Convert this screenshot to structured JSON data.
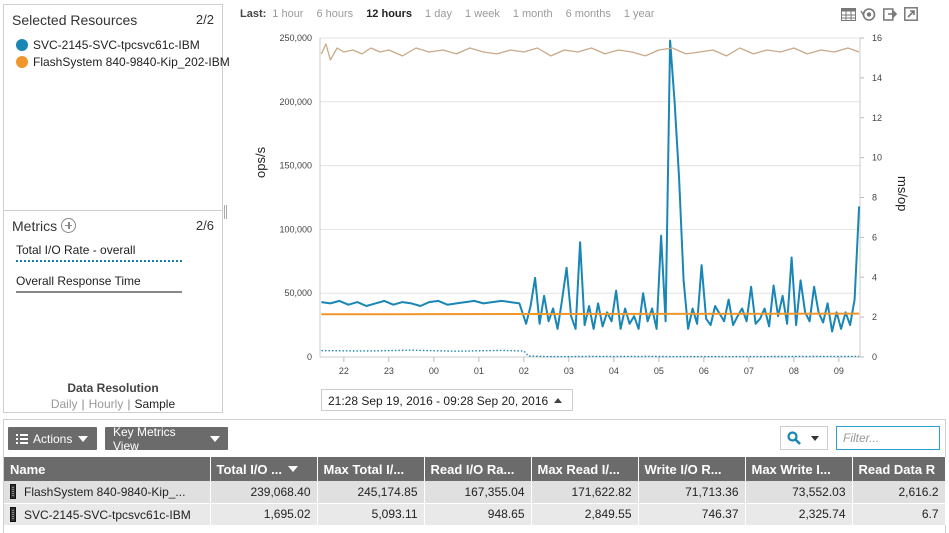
{
  "selected_resources": {
    "title": "Selected Resources",
    "count": "2/2",
    "items": [
      {
        "label": "SVC-2145-SVC-tpcsvc61c-IBM",
        "color": "#1a86b5"
      },
      {
        "label": "FlashSystem 840-9840-Kip_202-IBM",
        "color": "#f0962a"
      }
    ]
  },
  "metrics": {
    "title": "Metrics",
    "count": "2/6",
    "items": [
      {
        "label": "Total I/O Rate - overall"
      },
      {
        "label": "Overall Response Time"
      }
    ],
    "resolution_title": "Data Resolution",
    "resolution_options": [
      "Daily",
      "Hourly",
      "Sample"
    ],
    "resolution_selected": "Sample",
    "separator": "|"
  },
  "time_range": {
    "label": "Last:",
    "options": [
      "1 hour",
      "6 hours",
      "12 hours",
      "1 day",
      "1 week",
      "1 month",
      "6 months",
      "1 year"
    ],
    "selected": "12 hours"
  },
  "toolbar_icons": [
    "table-view-icon",
    "refresh-icon",
    "export-icon",
    "open-window-icon"
  ],
  "chart_data": {
    "type": "line",
    "ylabel_left": "ops/s",
    "ylabel_right": "ms/op",
    "y_left_ticks": [
      "0",
      "50,000",
      "100,000",
      "150,000",
      "200,000",
      "250,000"
    ],
    "y_left_range": [
      0,
      250000
    ],
    "y_right_ticks": [
      "0",
      "2",
      "4",
      "6",
      "8",
      "10",
      "12",
      "14",
      "16"
    ],
    "y_right_range": [
      0,
      16
    ],
    "x_tick_labels": [
      "22",
      "23",
      "00",
      "01",
      "02",
      "03",
      "04",
      "05",
      "06",
      "07",
      "08",
      "09"
    ],
    "x_tick_hours": [
      22,
      23,
      24,
      25,
      26,
      27,
      28,
      29,
      30,
      31,
      32,
      33
    ],
    "x_range_hours": [
      21.47,
      33.47
    ],
    "grid": true,
    "series": [
      {
        "name": "SVC-2145-SVC-tpcsvc61c-IBM",
        "metric": "Total I/O Rate - overall",
        "axis": "left",
        "style": "solid",
        "color": "#1a86b5",
        "x": [
          21.5,
          21.7,
          21.9,
          22.1,
          22.3,
          22.5,
          22.7,
          22.9,
          23.1,
          23.3,
          23.5,
          23.7,
          23.9,
          24.1,
          24.3,
          24.5,
          24.7,
          24.9,
          25.1,
          25.3,
          25.5,
          25.7,
          25.9,
          26.05,
          26.15,
          26.25,
          26.35,
          26.45,
          26.55,
          26.65,
          26.75,
          26.85,
          26.95,
          27.05,
          27.15,
          27.25,
          27.35,
          27.45,
          27.55,
          27.65,
          27.75,
          27.85,
          27.95,
          28.05,
          28.15,
          28.25,
          28.35,
          28.45,
          28.55,
          28.65,
          28.75,
          28.85,
          28.95,
          29.05,
          29.15,
          29.25,
          29.35,
          29.45,
          29.55,
          29.65,
          29.75,
          29.85,
          29.95,
          30.05,
          30.15,
          30.25,
          30.35,
          30.45,
          30.55,
          30.65,
          30.75,
          30.85,
          30.95,
          31.05,
          31.15,
          31.25,
          31.35,
          31.45,
          31.55,
          31.65,
          31.75,
          31.85,
          31.95,
          32.05,
          32.15,
          32.25,
          32.35,
          32.45,
          32.55,
          32.65,
          32.75,
          32.85,
          32.95,
          33.05,
          33.15,
          33.25,
          33.35,
          33.45
        ],
        "y": [
          43000,
          42000,
          44000,
          41000,
          43000,
          40000,
          42000,
          44000,
          41000,
          43000,
          42000,
          40000,
          43000,
          44000,
          41000,
          42000,
          43000,
          44000,
          42000,
          43000,
          44000,
          43000,
          42000,
          26000,
          40000,
          62000,
          26000,
          48000,
          28000,
          38000,
          22000,
          45000,
          70000,
          32000,
          22000,
          90000,
          25000,
          40000,
          22000,
          42000,
          24000,
          35000,
          28000,
          52000,
          22000,
          38000,
          26000,
          32000,
          22000,
          50000,
          28000,
          38000,
          22000,
          95000,
          28000,
          248000,
          200000,
          140000,
          60000,
          22000,
          38000,
          26000,
          72000,
          30000,
          25000,
          40000,
          34000,
          28000,
          45000,
          25000,
          32000,
          38000,
          28000,
          55000,
          26000,
          30000,
          38000,
          24000,
          56000,
          32000,
          48000,
          26000,
          78000,
          25000,
          60000,
          35000,
          28000,
          55000,
          35000,
          27000,
          42000,
          20000,
          35000,
          22000,
          35000,
          25000,
          45000,
          118000
        ]
      },
      {
        "name": "FlashSystem 840-9840-Kip_202-IBM",
        "metric": "Total I/O Rate - overall",
        "axis": "left",
        "style": "solid",
        "color": "#f0962a",
        "x": [
          21.5,
          33.45
        ],
        "y": [
          33500,
          34000
        ]
      },
      {
        "name": "SVC-2145-SVC-tpcsvc61c-IBM",
        "metric": "Overall Response Time",
        "axis": "right",
        "style": "dotted",
        "color": "#1a86b5",
        "x": [
          21.5,
          22.5,
          23.5,
          24.5,
          25.5,
          26.0,
          26.1,
          26.5,
          28.0,
          30.0,
          33.45
        ],
        "y": [
          0.32,
          0.3,
          0.34,
          0.29,
          0.33,
          0.3,
          0.05,
          0.02,
          0.03,
          0.02,
          0.03
        ]
      },
      {
        "name": "FlashSystem 840-9840-Kip_202-IBM",
        "metric": "Overall Response Time",
        "axis": "right",
        "style": "solid",
        "color": "#c9a98a",
        "x": [
          21.5,
          21.6,
          21.7,
          21.85,
          22.0,
          22.2,
          22.4,
          22.6,
          22.8,
          23.0,
          23.3,
          23.6,
          23.9,
          24.2,
          24.5,
          24.8,
          25.1,
          25.4,
          25.7,
          26.0,
          26.3,
          26.6,
          26.9,
          27.2,
          27.5,
          27.8,
          28.1,
          28.4,
          28.7,
          29.0,
          29.3,
          29.6,
          29.9,
          30.2,
          30.5,
          30.8,
          31.1,
          31.4,
          31.7,
          32.0,
          32.3,
          32.6,
          32.9,
          33.2,
          33.45
        ],
        "y": [
          15.2,
          15.7,
          14.9,
          15.5,
          15.3,
          15.4,
          15.2,
          15.5,
          15.3,
          15.4,
          15.1,
          15.5,
          15.3,
          15.4,
          15.2,
          15.5,
          15.3,
          15.2,
          15.4,
          15.3,
          15.5,
          15.1,
          15.4,
          15.3,
          15.5,
          15.2,
          15.4,
          15.3,
          15.1,
          15.4,
          15.5,
          15.2,
          15.3,
          15.4,
          15.1,
          15.5,
          15.2,
          15.4,
          15.3,
          15.5,
          15.2,
          15.4,
          15.3,
          15.5,
          15.3
        ]
      }
    ]
  },
  "date_range": "21:28 Sep 19, 2016 - 09:28 Sep 20, 2016",
  "table_toolbar": {
    "actions_label": "Actions",
    "key_metrics_label": "Key Metrics View",
    "filter_placeholder": "Filter..."
  },
  "table": {
    "columns": [
      "Name",
      "Total I/O ...",
      "Max Total I/...",
      "Read I/O Ra...",
      "Max Read I/...",
      "Write I/O R...",
      "Max Write I...",
      "Read Data R"
    ],
    "rows": [
      [
        "FlashSystem 840-9840-Kip_...",
        "239,068.40",
        "245,174.85",
        "167,355.04",
        "171,622.82",
        "71,713.36",
        "73,552.03",
        "2,616.2"
      ],
      [
        "SVC-2145-SVC-tpcsvc61c-IBM",
        "1,695.02",
        "5,093.11",
        "948.65",
        "2,849.55",
        "746.37",
        "2,325.74",
        "6.7"
      ]
    ]
  }
}
